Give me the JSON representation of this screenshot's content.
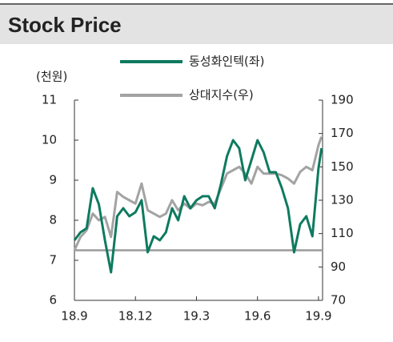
{
  "chart_data": {
    "type": "line",
    "title": "Stock Price",
    "y_label": "(천원)",
    "x": [
      0,
      0.3,
      0.6,
      0.9,
      1.2,
      1.5,
      1.8,
      2.1,
      2.4,
      2.7,
      3.0,
      3.3,
      3.6,
      3.9,
      4.2,
      4.5,
      4.8,
      5.1,
      5.4,
      5.7,
      6.0,
      6.3,
      6.6,
      6.9,
      7.2,
      7.5,
      7.8,
      8.1,
      8.4,
      8.7,
      9.0,
      9.3,
      9.6,
      9.9,
      10.2,
      10.5,
      10.8,
      11.1,
      11.4,
      11.7,
      12.0,
      12.15
    ],
    "series": [
      {
        "name": "동성화인텍(좌)",
        "color": "#0e7a5f",
        "axis": "y",
        "values": [
          7.5,
          7.7,
          7.8,
          8.8,
          8.4,
          7.5,
          6.7,
          8.1,
          8.3,
          8.1,
          8.2,
          8.5,
          7.2,
          7.6,
          7.5,
          7.7,
          8.3,
          8.0,
          8.6,
          8.3,
          8.5,
          8.6,
          8.6,
          8.3,
          8.9,
          9.6,
          10.0,
          9.8,
          9.0,
          9.5,
          10.0,
          9.7,
          9.2,
          9.2,
          8.8,
          8.3,
          7.2,
          7.9,
          8.1,
          7.6,
          9.3,
          9.8
        ]
      },
      {
        "name": "상대지수(우)",
        "color": "#a3a3a3",
        "axis": "y2",
        "values": [
          100,
          108,
          112,
          122,
          118,
          120,
          108,
          135,
          132,
          130,
          128,
          140,
          124,
          122,
          120,
          122,
          130,
          124,
          128,
          125,
          128,
          127,
          129,
          128,
          137,
          146,
          148,
          150,
          146,
          140,
          150,
          146,
          146,
          146,
          145,
          143,
          140,
          147,
          150,
          148,
          163,
          168
        ]
      }
    ],
    "reference_line": {
      "axis": "y2",
      "value": 100,
      "color": "#9a9a9a"
    },
    "xlim": [
      0,
      12.2
    ],
    "xticks": [
      {
        "value": 0,
        "label": "18.9"
      },
      {
        "value": 3,
        "label": "18.12"
      },
      {
        "value": 6,
        "label": "19.3"
      },
      {
        "value": 9,
        "label": "19.6"
      },
      {
        "value": 12,
        "label": "19.9"
      }
    ],
    "ylim": [
      6,
      11
    ],
    "yticks": [
      6,
      7,
      8,
      9,
      10,
      11
    ],
    "y2lim": [
      70,
      190
    ],
    "y2ticks": [
      70,
      90,
      110,
      130,
      150,
      170,
      190
    ]
  }
}
